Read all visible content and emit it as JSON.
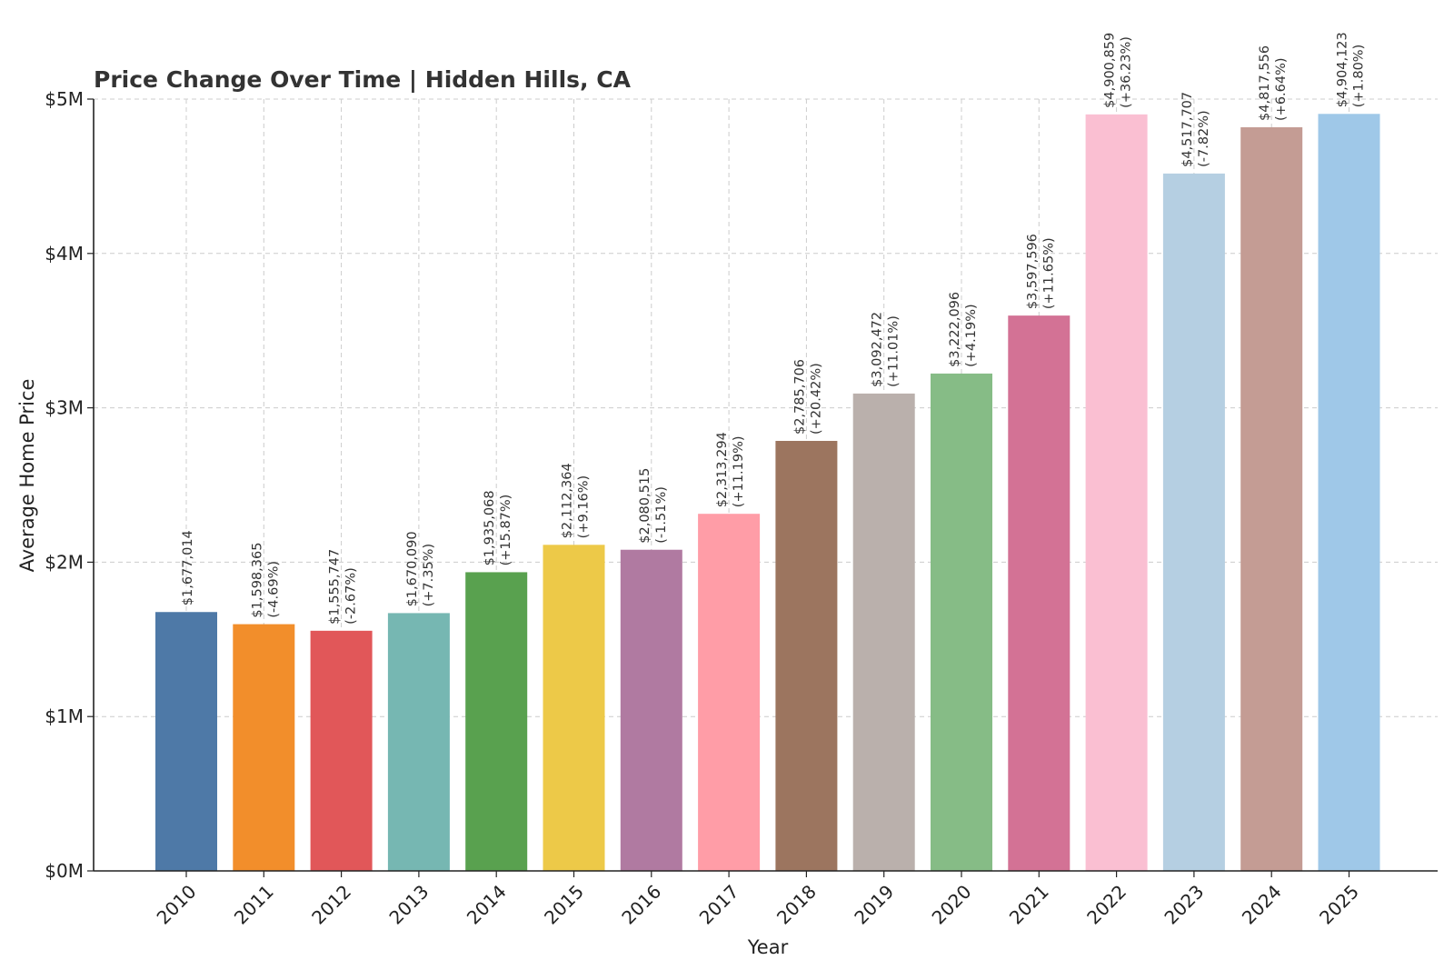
{
  "chart_data": {
    "type": "bar",
    "title": "Price Change Over Time | Hidden Hills, CA",
    "xlabel": "Year",
    "ylabel": "Average Home Price",
    "categories": [
      "2010",
      "2011",
      "2012",
      "2013",
      "2014",
      "2015",
      "2016",
      "2017",
      "2018",
      "2019",
      "2020",
      "2021",
      "2022",
      "2023",
      "2024",
      "2025"
    ],
    "values": [
      1677014,
      1598365,
      1555747,
      1670090,
      1935068,
      2112364,
      2080515,
      2313294,
      2785706,
      3092472,
      3222096,
      3597596,
      4900859,
      4517707,
      4817556,
      4904123
    ],
    "value_labels": [
      "$1,677,014",
      "$1,598,365",
      "$1,555,747",
      "$1,670,090",
      "$1,935,068",
      "$2,112,364",
      "$2,080,515",
      "$2,313,294",
      "$2,785,706",
      "$3,092,472",
      "$3,222,096",
      "$3,597,596",
      "$4,900,859",
      "$4,517,707",
      "$4,817,556",
      "$4,904,123"
    ],
    "change_labels": [
      "",
      "(-4.69%)",
      "(-2.67%)",
      "(+7.35%)",
      "(+15.87%)",
      "(+9.16%)",
      "(-1.51%)",
      "(+11.19%)",
      "(+20.42%)",
      "(+11.01%)",
      "(+4.19%)",
      "(+11.65%)",
      "(+36.23%)",
      "(-7.82%)",
      "(+6.64%)",
      "(+1.80%)"
    ],
    "colors": [
      "#4e79a7",
      "#f28e2b",
      "#e15759",
      "#76b7b2",
      "#59a14f",
      "#edc948",
      "#b07aa1",
      "#ff9da7",
      "#9c755f",
      "#bab0ac",
      "#86bc86",
      "#d37295",
      "#fabfd2",
      "#b5cfe2",
      "#c49c94",
      "#9fc8e8"
    ],
    "ylim": [
      0,
      5000000
    ],
    "yticks": [
      0,
      1000000,
      2000000,
      3000000,
      4000000,
      5000000
    ],
    "ytick_labels": [
      "$0M",
      "$1M",
      "$2M",
      "$3M",
      "$4M",
      "$5M"
    ],
    "grid": true,
    "legend": "none"
  }
}
